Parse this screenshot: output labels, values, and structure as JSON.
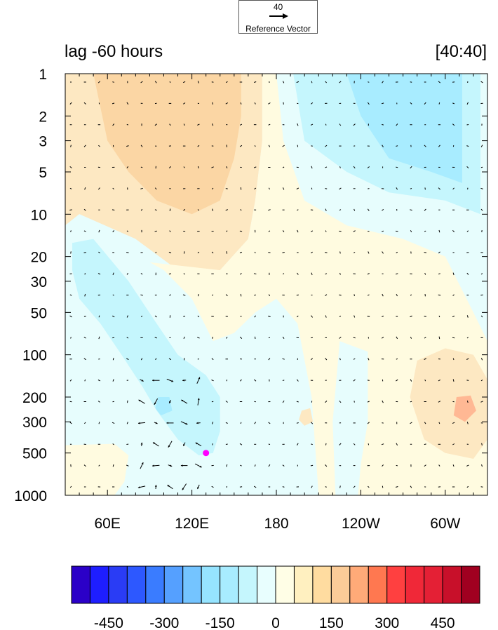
{
  "reference_vector": {
    "value": "40",
    "label": "Reference Vector"
  },
  "chart_data": {
    "type": "heatmap",
    "title_left": "lag -60 hours",
    "title_right": "[40:40]",
    "x_ticks": [
      "60E",
      "120E",
      "180",
      "120W",
      "60W"
    ],
    "x_tick_lon": [
      60,
      120,
      180,
      240,
      300
    ],
    "x_range_lon": [
      30,
      330
    ],
    "y_ticks": [
      "1",
      "2",
      "3",
      "5",
      "10",
      "20",
      "30",
      "50",
      "100",
      "200",
      "300",
      "500",
      "1000"
    ],
    "y_tick_values": [
      1,
      2,
      3,
      5,
      10,
      20,
      30,
      50,
      100,
      200,
      300,
      500,
      1000
    ],
    "y_range": [
      1,
      1000
    ],
    "y_scale": "log",
    "y_reversed": true,
    "colorbar": {
      "tick_labels": [
        "-450",
        "-300",
        "-150",
        "0",
        "150",
        "300",
        "450"
      ],
      "tick_values": [
        -450,
        -300,
        -150,
        0,
        150,
        300,
        450
      ],
      "colors": [
        "#2b00c8",
        "#1e1eff",
        "#2a3cf5",
        "#2d58ff",
        "#3a7cff",
        "#55a0ff",
        "#74c4ff",
        "#96e4ff",
        "#a8ecff",
        "#c5f6fd",
        "#e8fefe",
        "#fffee6",
        "#fff0c0",
        "#ffdca0",
        "#fbcc98",
        "#ffaa78",
        "#ff7850",
        "#ff4040",
        "#f02838",
        "#e42035",
        "#c8102a",
        "#a00020"
      ]
    },
    "marker": {
      "lon": 130,
      "level": 500,
      "color": "#ff00ff"
    },
    "fill_colors": {
      "orange": "#fbd6a4",
      "light_orange": "#fde8c2",
      "cream": "#fffbe0",
      "very_light_blue": "#e7fdfd",
      "light_blue": "#c5f6fd",
      "blue": "#a8ecff",
      "mid_blue": "#96e0ff",
      "pink": "#ffb894"
    },
    "contour_regions": [
      {
        "fill": "light_orange",
        "points": [
          [
            30,
            1
          ],
          [
            170,
            1
          ],
          [
            170,
            3
          ],
          [
            165,
            8
          ],
          [
            160,
            15
          ],
          [
            140,
            25
          ],
          [
            110,
            25
          ],
          [
            80,
            15
          ],
          [
            40,
            10
          ],
          [
            30,
            12
          ]
        ]
      },
      {
        "fill": "orange",
        "points": [
          [
            50,
            1
          ],
          [
            155,
            1
          ],
          [
            155,
            2
          ],
          [
            150,
            4
          ],
          [
            140,
            8
          ],
          [
            120,
            10
          ],
          [
            95,
            8
          ],
          [
            75,
            5
          ],
          [
            60,
            3
          ]
        ]
      },
      {
        "fill": "cream",
        "points": [
          [
            170,
            1
          ],
          [
            180,
            1
          ],
          [
            185,
            3
          ],
          [
            200,
            8
          ],
          [
            230,
            12
          ],
          [
            270,
            15
          ],
          [
            300,
            20
          ],
          [
            320,
            50
          ],
          [
            330,
            80
          ],
          [
            330,
            1000
          ],
          [
            210,
            1000
          ],
          [
            205,
            200
          ],
          [
            195,
            60
          ],
          [
            180,
            40
          ],
          [
            165,
            50
          ],
          [
            150,
            70
          ],
          [
            135,
            80
          ],
          [
            120,
            40
          ],
          [
            100,
            25
          ],
          [
            90,
            22
          ],
          [
            140,
            25
          ],
          [
            160,
            15
          ],
          [
            165,
            8
          ],
          [
            170,
            3
          ]
        ]
      },
      {
        "fill": "very_light_blue",
        "points": [
          [
            180,
            1
          ],
          [
            330,
            1
          ],
          [
            330,
            15
          ],
          [
            300,
            12
          ],
          [
            270,
            12
          ],
          [
            230,
            10
          ],
          [
            200,
            6
          ]
        ]
      },
      {
        "fill": "light_blue",
        "points": [
          [
            192,
            1
          ],
          [
            325,
            1
          ],
          [
            325,
            10
          ],
          [
            300,
            8
          ],
          [
            260,
            7
          ],
          [
            230,
            5
          ],
          [
            200,
            3
          ]
        ]
      },
      {
        "fill": "blue",
        "points": [
          [
            230,
            1
          ],
          [
            312,
            1
          ],
          [
            312,
            6
          ],
          [
            290,
            5
          ],
          [
            260,
            4
          ],
          [
            240,
            2
          ]
        ]
      },
      {
        "fill": "very_light_blue",
        "points": [
          [
            30,
            12
          ],
          [
            40,
            10
          ],
          [
            80,
            15
          ],
          [
            90,
            22
          ],
          [
            100,
            25
          ],
          [
            120,
            40
          ],
          [
            135,
            80
          ],
          [
            150,
            70
          ],
          [
            165,
            50
          ],
          [
            180,
            40
          ],
          [
            195,
            60
          ],
          [
            205,
            200
          ],
          [
            210,
            1000
          ],
          [
            30,
            1000
          ],
          [
            30,
            700
          ],
          [
            70,
            500
          ],
          [
            55,
            400
          ],
          [
            35,
            400
          ],
          [
            30,
            420
          ]
        ]
      },
      {
        "fill": "light_blue",
        "points": [
          [
            35,
            16
          ],
          [
            50,
            15
          ],
          [
            75,
            30
          ],
          [
            95,
            60
          ],
          [
            110,
            100
          ],
          [
            130,
            140
          ],
          [
            140,
            200
          ],
          [
            140,
            350
          ],
          [
            135,
            500
          ],
          [
            125,
            520
          ],
          [
            110,
            400
          ],
          [
            95,
            250
          ],
          [
            85,
            170
          ],
          [
            70,
            100
          ],
          [
            55,
            60
          ],
          [
            40,
            40
          ],
          [
            35,
            25
          ]
        ]
      },
      {
        "fill": "blue",
        "points": [
          [
            96,
            200
          ],
          [
            104,
            200
          ],
          [
            106,
            250
          ],
          [
            98,
            270
          ],
          [
            94,
            240
          ]
        ]
      },
      {
        "fill": "cream",
        "points": [
          [
            30,
            440
          ],
          [
            65,
            430
          ],
          [
            75,
            520
          ],
          [
            72,
            800
          ],
          [
            65,
            1000
          ],
          [
            30,
            1000
          ]
        ]
      },
      {
        "fill": "very_light_blue",
        "points": [
          [
            225,
            80
          ],
          [
            245,
            95
          ],
          [
            245,
            300
          ],
          [
            240,
            600
          ],
          [
            238,
            1000
          ],
          [
            222,
            1000
          ],
          [
            220,
            300
          ]
        ]
      },
      {
        "fill": "light_orange",
        "points": [
          [
            280,
            110
          ],
          [
            300,
            90
          ],
          [
            320,
            100
          ],
          [
            330,
            150
          ],
          [
            330,
            400
          ],
          [
            320,
            550
          ],
          [
            300,
            500
          ],
          [
            285,
            400
          ],
          [
            275,
            200
          ]
        ]
      },
      {
        "fill": "pink",
        "points": [
          [
            308,
            200
          ],
          [
            318,
            195
          ],
          [
            322,
            250
          ],
          [
            314,
            300
          ],
          [
            306,
            270
          ]
        ]
      },
      {
        "fill": "light_orange",
        "points": [
          [
            198,
            250
          ],
          [
            204,
            240
          ],
          [
            206,
            300
          ],
          [
            200,
            320
          ],
          [
            196,
            290
          ]
        ]
      }
    ]
  }
}
